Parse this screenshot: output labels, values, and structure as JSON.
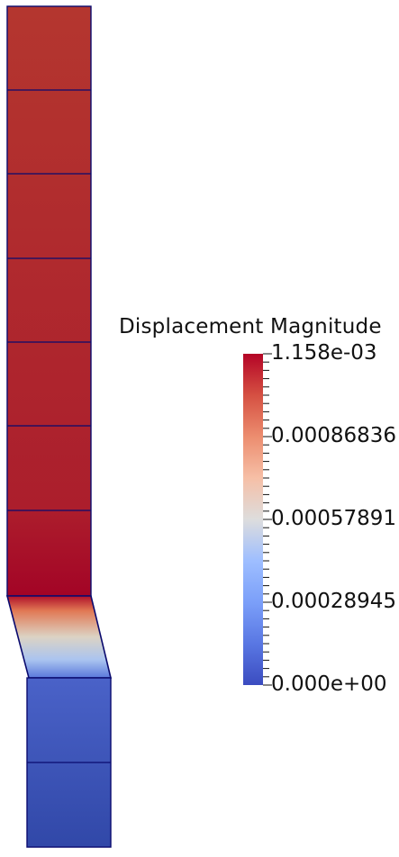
{
  "colorbar": {
    "title": "Displacement Magnitude",
    "min": 0,
    "max": 0.001158,
    "labels": [
      "1.158e-03",
      "0.00086836",
      "0.00057891",
      "0.00028945",
      "0.000e+00"
    ],
    "colormap": "cool-to-warm",
    "colors": {
      "low": "#3b4cc0",
      "mid": "#dddddd",
      "high": "#b40426"
    }
  },
  "mesh": {
    "element_count": 10,
    "edge_color": "#0a0a6e"
  }
}
